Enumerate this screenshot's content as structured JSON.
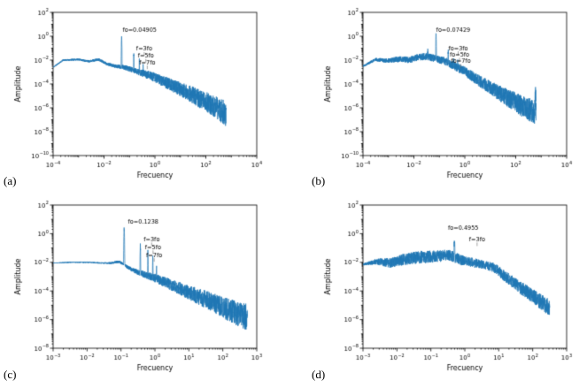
{
  "figure": {
    "background": "#ffffff",
    "line_color": "#1f77b4",
    "subplot_count": 4
  },
  "chart_data": [
    {
      "id": "a",
      "corner_label": "(a)",
      "type": "line",
      "title": "",
      "xlabel": "Frecuency",
      "ylabel": "Amplitude",
      "color": "#1f77b4",
      "xlim_exp": [
        -4,
        4
      ],
      "ylim_exp": [
        -10,
        2
      ],
      "xticks_exp": [
        -4,
        -2,
        0,
        2,
        4
      ],
      "yticks_exp": [
        2,
        0,
        -2,
        -4,
        -6,
        -8,
        -10
      ],
      "fo": 0.04905,
      "annotations": [
        {
          "text": "fo=0.04905",
          "f": 0.25,
          "a": 2.5,
          "tick": false
        },
        {
          "text": "f=3fo",
          "f": 0.38,
          "a": 0.06,
          "tick": true
        },
        {
          "text": "f=5fo",
          "f": 0.44,
          "a": 0.016,
          "tick": true
        },
        {
          "text": "f=7fo",
          "f": 0.5,
          "a": 0.0045,
          "tick": true
        }
      ],
      "synth": {
        "seed": 11,
        "n": 2000,
        "logf_range": [
          -4,
          2.8
        ],
        "baseline": [
          [
            -4,
            -2.6
          ],
          [
            -3.6,
            -2.0
          ],
          [
            -3.0,
            -1.95
          ],
          [
            -2.6,
            -2.1
          ],
          [
            -2.2,
            -1.95
          ],
          [
            -1.9,
            -2.3
          ],
          [
            -1.6,
            -2.5
          ],
          [
            -1.2,
            -2.6
          ],
          [
            -0.8,
            -2.9
          ],
          [
            -0.4,
            -3.15
          ],
          [
            0,
            -3.45
          ],
          [
            0.5,
            -3.95
          ],
          [
            1,
            -4.45
          ],
          [
            1.5,
            -4.95
          ],
          [
            2,
            -5.5
          ],
          [
            2.5,
            -6.1
          ],
          [
            2.8,
            -6.5
          ]
        ],
        "spikes": [
          [
            0.04905,
            1.2,
            0.02
          ],
          [
            0.14715,
            0.03,
            0.015
          ],
          [
            0.24525,
            0.008,
            0.015
          ],
          [
            0.34335,
            0.0025,
            0.015
          ]
        ],
        "noise": [
          [
            -4,
            0.05
          ],
          [
            -2.5,
            0.1
          ],
          [
            -1.5,
            0.15
          ],
          [
            -0.5,
            0.3
          ],
          [
            0,
            0.4
          ],
          [
            1,
            0.6
          ],
          [
            2,
            0.85
          ],
          [
            2.8,
            1.05
          ]
        ]
      }
    },
    {
      "id": "b",
      "corner_label": "(b)",
      "type": "line",
      "title": "",
      "xlabel": "Frecuency",
      "ylabel": "Amplitude",
      "color": "#1f77b4",
      "xlim_exp": [
        -4,
        4
      ],
      "ylim_exp": [
        -10,
        2
      ],
      "xticks_exp": [
        -4,
        -2,
        0,
        2,
        4
      ],
      "yticks_exp": [
        2,
        0,
        -2,
        -4,
        -6,
        -8,
        -10
      ],
      "fo": 0.07429,
      "annotations": [
        {
          "text": "fo=0.07429",
          "f": 0.35,
          "a": 2.5,
          "tick": false
        },
        {
          "text": "fo=3fo",
          "f": 0.55,
          "a": 0.07,
          "tick": true
        },
        {
          "text": "fo=5fo",
          "f": 0.62,
          "a": 0.02,
          "tick": true
        },
        {
          "text": "fo=7fo",
          "f": 0.7,
          "a": 0.006,
          "tick": true
        }
      ],
      "synth": {
        "seed": 22,
        "n": 2000,
        "logf_range": [
          -4,
          2.8
        ],
        "baseline": [
          [
            -4,
            -2.5
          ],
          [
            -3.5,
            -1.95
          ],
          [
            -3.0,
            -2.05
          ],
          [
            -2.5,
            -1.9
          ],
          [
            -2.2,
            -2.0
          ],
          [
            -1.8,
            -1.75
          ],
          [
            -1.5,
            -1.7
          ],
          [
            -1.2,
            -1.85
          ],
          [
            -0.9,
            -2.0
          ],
          [
            -0.6,
            -2.25
          ],
          [
            -0.3,
            -2.6
          ],
          [
            0,
            -2.95
          ],
          [
            0.5,
            -3.65
          ],
          [
            1,
            -4.3
          ],
          [
            1.5,
            -4.95
          ],
          [
            2,
            -5.55
          ],
          [
            2.5,
            -6.15
          ],
          [
            2.8,
            -6.4
          ]
        ],
        "spikes": [
          [
            0.035,
            0.05,
            0.02
          ],
          [
            0.07429,
            1.3,
            0.02
          ],
          [
            0.22287,
            0.06,
            0.015
          ],
          [
            0.37145,
            0.022,
            0.015
          ],
          [
            0.52003,
            0.008,
            0.015
          ],
          [
            600,
            1e-05,
            0.03
          ]
        ],
        "noise": [
          [
            -4,
            0.08
          ],
          [
            -2.6,
            0.25
          ],
          [
            -1.6,
            0.3
          ],
          [
            -0.6,
            0.35
          ],
          [
            0,
            0.4
          ],
          [
            1,
            0.55
          ],
          [
            2,
            0.85
          ],
          [
            2.8,
            1.05
          ]
        ]
      }
    },
    {
      "id": "c",
      "corner_label": "(c)",
      "type": "line",
      "title": "",
      "xlabel": "Frecuency",
      "ylabel": "Amplitude",
      "color": "#1f77b4",
      "xlim_exp": [
        -3,
        3
      ],
      "ylim_exp": [
        -8,
        2
      ],
      "xticks_exp": [
        -3,
        -2,
        -1,
        0,
        1,
        2,
        3
      ],
      "yticks_exp": [
        2,
        0,
        -2,
        -4,
        -6,
        -8
      ],
      "fo": 0.1238,
      "annotations": [
        {
          "text": "fo=0.1238",
          "f": 0.45,
          "a": 5,
          "tick": false
        },
        {
          "text": "f=3fo",
          "f": 0.8,
          "a": 0.3,
          "tick": true
        },
        {
          "text": "f=5fo",
          "f": 0.88,
          "a": 0.085,
          "tick": true
        },
        {
          "text": "f=7fo",
          "f": 0.95,
          "a": 0.024,
          "tick": true
        }
      ],
      "synth": {
        "seed": 33,
        "n": 2000,
        "logf_range": [
          -3,
          2.72
        ],
        "baseline": [
          [
            -3,
            -2.05
          ],
          [
            -2.5,
            -2.0
          ],
          [
            -2.0,
            -2.0
          ],
          [
            -1.6,
            -2.05
          ],
          [
            -1.3,
            -2.05
          ],
          [
            -1.05,
            -1.95
          ],
          [
            -0.8,
            -2.35
          ],
          [
            -0.5,
            -2.7
          ],
          [
            -0.2,
            -2.95
          ],
          [
            0,
            -3.1
          ],
          [
            0.5,
            -3.6
          ],
          [
            1,
            -4.1
          ],
          [
            1.5,
            -4.6
          ],
          [
            2,
            -5.15
          ],
          [
            2.4,
            -5.55
          ],
          [
            2.72,
            -5.85
          ]
        ],
        "spikes": [
          [
            0.1238,
            2.2,
            0.02
          ],
          [
            0.3714,
            0.14,
            0.015
          ],
          [
            0.619,
            0.045,
            0.015
          ],
          [
            0.8666,
            0.016,
            0.015
          ],
          [
            1.1142,
            0.006,
            0.012
          ]
        ],
        "noise": [
          [
            -3,
            0.025
          ],
          [
            -1.5,
            0.05
          ],
          [
            -0.8,
            0.12
          ],
          [
            0,
            0.3
          ],
          [
            1,
            0.5
          ],
          [
            2,
            0.75
          ],
          [
            2.72,
            0.95
          ]
        ]
      }
    },
    {
      "id": "d",
      "corner_label": "(d)",
      "type": "line",
      "title": "",
      "xlabel": "Frecuency",
      "ylabel": "Amplitude",
      "color": "#1f77b4",
      "xlim_exp": [
        -3,
        3
      ],
      "ylim_exp": [
        -8,
        2
      ],
      "xticks_exp": [
        -3,
        -2,
        -1,
        0,
        1,
        2,
        3
      ],
      "yticks_exp": [
        2,
        0,
        -2,
        -4,
        -6,
        -8
      ],
      "fo": 0.4955,
      "annotations": [
        {
          "text": "fo=0.4955",
          "f": 0.9,
          "a": 2.0,
          "tick": false
        },
        {
          "text": "f=3fo",
          "f": 2.3,
          "a": 0.3,
          "tick": true
        }
      ],
      "synth": {
        "seed": 44,
        "n": 2000,
        "logf_range": [
          -3,
          2.5
        ],
        "baseline": [
          [
            -3,
            -2.15
          ],
          [
            -2.6,
            -1.95
          ],
          [
            -2.2,
            -2.05
          ],
          [
            -1.8,
            -1.8
          ],
          [
            -1.4,
            -1.65
          ],
          [
            -1.0,
            -1.6
          ],
          [
            -0.7,
            -1.55
          ],
          [
            -0.45,
            -1.5
          ],
          [
            -0.1,
            -1.85
          ],
          [
            0.2,
            -2.0
          ],
          [
            0.5,
            -2.15
          ],
          [
            0.85,
            -2.35
          ],
          [
            1.2,
            -3.0
          ],
          [
            1.6,
            -3.7
          ],
          [
            2.0,
            -4.35
          ],
          [
            2.5,
            -5.2
          ]
        ],
        "spikes": [
          [
            0.4955,
            0.3,
            0.025
          ],
          [
            1.4865,
            0.02,
            0.015
          ]
        ],
        "noise": [
          [
            -3,
            0.06
          ],
          [
            -2.4,
            0.3
          ],
          [
            -1.8,
            0.4
          ],
          [
            -1.2,
            0.45
          ],
          [
            -0.6,
            0.4
          ],
          [
            0,
            0.35
          ],
          [
            0.6,
            0.3
          ],
          [
            1.2,
            0.4
          ],
          [
            2,
            0.5
          ],
          [
            2.5,
            0.6
          ]
        ]
      }
    }
  ]
}
